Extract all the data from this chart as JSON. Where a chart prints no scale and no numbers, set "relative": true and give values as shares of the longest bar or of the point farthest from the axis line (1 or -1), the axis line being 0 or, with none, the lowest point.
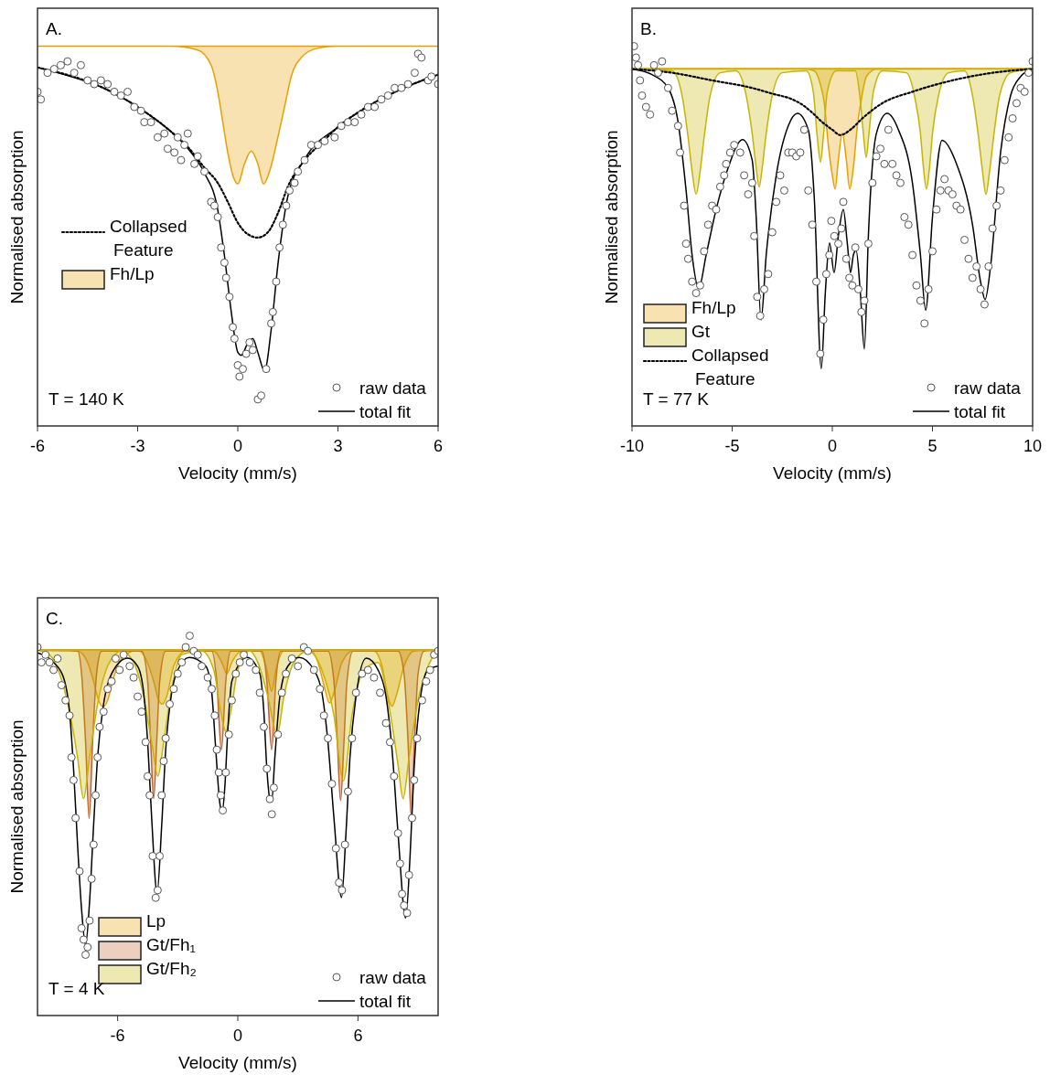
{
  "chart_data": [
    {
      "type": "line",
      "title": "A.",
      "xlabel": "Velocity (mm/s)",
      "ylabel": "Normalised absorption",
      "relative": true,
      "xlim": [
        -6,
        6
      ],
      "xticks": [
        -6,
        -3,
        0,
        3,
        6
      ],
      "legend": "left",
      "annotations": [
        "T = 140 K"
      ],
      "series": [
        {
          "name": "raw data",
          "type": "scatter",
          "marker": "circle",
          "color": "#555555",
          "x": [
            -6,
            -5.9,
            -5.7,
            -5.5,
            -5.3,
            -5.1,
            -4.9,
            -4.7,
            -4.5,
            -4.3,
            -4.1,
            -3.9,
            -3.7,
            -3.5,
            -3.3,
            -3.1,
            -2.9,
            -2.8,
            -2.6,
            -2.4,
            -2.2,
            -2.1,
            -1.9,
            -1.8,
            -1.7,
            -1.6,
            -1.5,
            -1.3,
            -1.2,
            -1.0,
            -0.8,
            -0.7,
            -0.6,
            -0.5,
            -0.4,
            -0.35,
            -0.25,
            -0.15,
            -0.1,
            0,
            0.05,
            0.15,
            0.25,
            0.35,
            0.45,
            0.6,
            0.7,
            0.85,
            1.0,
            1.05,
            1.15,
            1.25,
            1.35,
            1.45,
            1.55,
            1.7,
            1.8,
            2.0,
            2.2,
            2.4,
            2.6,
            2.9,
            3.1,
            3.3,
            3.5,
            3.7,
            3.9,
            4.1,
            4.3,
            4.5,
            4.7,
            4.9,
            5.1,
            5.3,
            5.4,
            5.5,
            5.7,
            5.8,
            6.0
          ],
          "values": [
            0.88,
            0.86,
            0.93,
            0.94,
            0.95,
            0.96,
            0.93,
            0.95,
            0.91,
            0.9,
            0.91,
            0.9,
            0.88,
            0.87,
            0.88,
            0.84,
            0.83,
            0.8,
            0.8,
            0.76,
            0.77,
            0.73,
            0.72,
            0.76,
            0.7,
            0.74,
            0.77,
            0.69,
            0.71,
            0.67,
            0.59,
            0.58,
            0.55,
            0.47,
            0.43,
            0.39,
            0.34,
            0.26,
            0.23,
            0.16,
            0.13,
            0.15,
            0.19,
            0.22,
            0.2,
            0.07,
            0.08,
            0.15,
            0.27,
            0.3,
            0.38,
            0.47,
            0.53,
            0.58,
            0.62,
            0.64,
            0.67,
            0.7,
            0.74,
            0.74,
            0.75,
            0.76,
            0.79,
            0.8,
            0.8,
            0.82,
            0.84,
            0.84,
            0.86,
            0.87,
            0.89,
            0.89,
            0.9,
            0.93,
            0.98,
            0.97,
            0.91,
            0.92,
            0.9
          ]
        },
        {
          "name": "total fit",
          "type": "line",
          "color": "#000000",
          "x": [
            -6,
            -5,
            -4,
            -3,
            -2,
            -1.5,
            -1,
            -0.6,
            -0.4,
            -0.2,
            0,
            0.1,
            0.3,
            0.45,
            0.6,
            0.8,
            1.0,
            1.2,
            1.5,
            2,
            3,
            4,
            5,
            6
          ],
          "values": [
            0.944,
            0.92,
            0.889,
            0.84,
            0.775,
            0.731,
            0.666,
            0.569,
            0.448,
            0.303,
            0.194,
            0.186,
            0.218,
            0.23,
            0.194,
            0.145,
            0.254,
            0.424,
            0.605,
            0.702,
            0.787,
            0.847,
            0.891,
            0.925
          ]
        },
        {
          "name": "Collapsed Feature",
          "type": "line",
          "line_style": "dotted",
          "color": "#000000",
          "x": [
            -6,
            -4,
            -3,
            -2,
            -1.5,
            -1,
            -0.6,
            -0.3,
            0,
            0.3,
            0.6,
            0.9,
            1.2,
            1.5,
            2,
            2.5,
            3,
            4,
            5,
            6
          ],
          "values": [
            0.944,
            0.889,
            0.84,
            0.775,
            0.735,
            0.68,
            0.64,
            0.59,
            0.535,
            0.505,
            0.496,
            0.51,
            0.56,
            0.63,
            0.7,
            0.745,
            0.787,
            0.847,
            0.891,
            0.925
          ]
        },
        {
          "name": "Fh/Lp",
          "type": "area",
          "color": "#e8a000",
          "x": [
            -6,
            -2,
            -1.2,
            -0.8,
            -0.6,
            -0.45,
            -0.3,
            -0.15,
            0,
            0.2,
            0.4,
            0.6,
            0.77,
            0.95,
            1.2,
            1.4,
            1.6,
            1.9,
            2.4,
            3,
            6
          ],
          "values": [
            1,
            1,
            0.99,
            0.95,
            0.88,
            0.8,
            0.72,
            0.66,
            0.637,
            0.69,
            0.724,
            0.69,
            0.637,
            0.67,
            0.76,
            0.84,
            0.92,
            0.97,
            0.995,
            1,
            1
          ]
        }
      ]
    },
    {
      "type": "line",
      "title": "B.",
      "xlabel": "Velocity (mm/s)",
      "ylabel": "Normalised absorption",
      "relative": true,
      "xlim": [
        -10,
        10
      ],
      "xticks": [
        -10,
        -5,
        0,
        5,
        10
      ],
      "legend": "bottom left",
      "annotations": [
        "T = 77 K"
      ],
      "series": [
        {
          "name": "raw data",
          "type": "scatter",
          "marker": "circle",
          "color": "#555555",
          "x": [
            -9.9,
            -9.8,
            -9.7,
            -9.6,
            -9.5,
            -9.3,
            -9.1,
            -8.9,
            -8.7,
            -8.5,
            -8.2,
            -8.0,
            -7.7,
            -7.6,
            -7.4,
            -7.3,
            -7.2,
            -7.0,
            -6.8,
            -6.6,
            -6.4,
            -6.2,
            -6.0,
            -5.8,
            -5.6,
            -5.4,
            -5.3,
            -5.1,
            -4.9,
            -4.6,
            -4.4,
            -4.2,
            -4.0,
            -3.9,
            -3.75,
            -3.6,
            -3.4,
            -3.2,
            -3.0,
            -2.8,
            -2.6,
            -2.4,
            -2.2,
            -2.0,
            -1.8,
            -1.6,
            -1.4,
            -1.2,
            -1.0,
            -0.8,
            -0.6,
            -0.45,
            -0.3,
            -0.15,
            -0.05,
            0.1,
            0.3,
            0.45,
            0.55,
            0.7,
            0.85,
            1.0,
            1.15,
            1.3,
            1.45,
            1.6,
            1.8,
            2.0,
            2.2,
            2.4,
            2.6,
            2.8,
            3.0,
            3.2,
            3.4,
            3.6,
            3.8,
            4.0,
            4.2,
            4.4,
            4.6,
            4.8,
            5.0,
            5.2,
            5.4,
            5.6,
            5.8,
            6.0,
            6.2,
            6.4,
            6.6,
            6.8,
            7.0,
            7.2,
            7.4,
            7.6,
            7.8,
            8.0,
            8.2,
            8.4,
            8.6,
            8.8,
            9.0,
            9.2,
            9.4,
            9.6,
            9.8,
            10.0
          ],
          "values": [
            1,
            0.97,
            0.95,
            0.91,
            0.87,
            0.84,
            0.82,
            0.95,
            0.93,
            0.96,
            0.89,
            0.83,
            0.79,
            0.72,
            0.58,
            0.48,
            0.44,
            0.38,
            0.35,
            0.37,
            0.46,
            0.53,
            0.58,
            0.57,
            0.63,
            0.66,
            0.69,
            0.72,
            0.74,
            0.72,
            0.66,
            0.61,
            0.64,
            0.5,
            0.34,
            0.29,
            0.36,
            0.4,
            0.51,
            0.59,
            0.66,
            0.62,
            0.72,
            0.72,
            0.71,
            0.72,
            0.78,
            0.62,
            0.53,
            0.38,
            0.19,
            0.28,
            0.4,
            0.45,
            0.54,
            0.5,
            0.48,
            0.52,
            0.59,
            0.44,
            0.39,
            0.37,
            0.47,
            0.36,
            0.3,
            0.33,
            0.48,
            0.64,
            0.71,
            0.73,
            0.69,
            0.78,
            0.69,
            0.66,
            0.64,
            0.55,
            0.53,
            0.45,
            0.37,
            0.33,
            0.27,
            0.36,
            0.46,
            0.57,
            0.62,
            0.65,
            0.62,
            0.61,
            0.58,
            0.57,
            0.49,
            0.44,
            0.39,
            0.42,
            0.36,
            0.32,
            0.42,
            0.52,
            0.58,
            0.62,
            0.7,
            0.76,
            0.81,
            0.85,
            0.89,
            0.88,
            0.93,
            0.96
          ]
        },
        {
          "name": "total fit",
          "type": "line",
          "color": "#000000",
          "x": [
            -10,
            -9,
            -8.2,
            -7.7,
            -7.3,
            -7.0,
            -6.67,
            -6.3,
            -5.8,
            -5.2,
            -4.48,
            -4.0,
            -3.8,
            -3.56,
            -3.3,
            -2.8,
            -2.2,
            -1.74,
            -1.2,
            -0.9,
            -0.55,
            -0.35,
            -0.14,
            0.09,
            0.3,
            0.55,
            0.75,
            0.91,
            1.05,
            1.19,
            1.4,
            1.6,
            1.8,
            2.2,
            2.74,
            3.3,
            4.0,
            4.4,
            4.66,
            5.0,
            5.48,
            6.2,
            7.0,
            7.4,
            7.63,
            7.9,
            8.4,
            8.9,
            9.4,
            10
          ],
          "values": [
            0.94,
            0.925,
            0.89,
            0.8,
            0.62,
            0.45,
            0.362,
            0.45,
            0.57,
            0.68,
            0.754,
            0.7,
            0.55,
            0.279,
            0.45,
            0.66,
            0.79,
            0.823,
            0.78,
            0.6,
            0.151,
            0.35,
            0.482,
            0.404,
            0.5,
            0.57,
            0.48,
            0.404,
            0.45,
            0.463,
            0.35,
            0.203,
            0.5,
            0.77,
            0.823,
            0.78,
            0.64,
            0.45,
            0.305,
            0.55,
            0.752,
            0.69,
            0.53,
            0.38,
            0.333,
            0.42,
            0.72,
            0.87,
            0.92,
            0.94
          ]
        },
        {
          "name": "Fh/Lp",
          "type": "area",
          "color": "#e8a000",
          "x": [
            -10,
            -1.5,
            -0.9,
            -0.6,
            -0.4,
            -0.2,
            0,
            0.14,
            0.3,
            0.5,
            0.7,
            0.87,
            1.05,
            1.25,
            1.45,
            1.7,
            2.2,
            10
          ],
          "values": [
            0.941,
            0.941,
            0.935,
            0.9,
            0.85,
            0.74,
            0.66,
            0.624,
            0.7,
            0.771,
            0.7,
            0.624,
            0.68,
            0.79,
            0.86,
            0.92,
            0.94,
            0.941
          ]
        },
        {
          "name": "Gt",
          "type": "area",
          "color": "#c8b400",
          "x": [
            -10,
            -8.0,
            -7.5,
            -7.2,
            -7.0,
            -6.8,
            -6.6,
            -6.4,
            -6.1,
            -5.6,
            -4.8,
            -4.3,
            -4.0,
            -3.8,
            -3.65,
            -3.5,
            -3.3,
            -3.0,
            -2.5,
            -1.3,
            -0.95,
            -0.75,
            -0.59,
            -0.45,
            -0.25,
            0.2,
            1.15,
            1.35,
            1.55,
            1.69,
            1.83,
            2.05,
            2.5,
            3.7,
            4.1,
            4.4,
            4.55,
            4.7,
            4.85,
            5.0,
            5.3,
            5.8,
            6.6,
            7.0,
            7.3,
            7.5,
            7.67,
            7.85,
            8.05,
            8.35,
            8.9,
            10
          ],
          "values": [
            0.94,
            0.935,
            0.87,
            0.76,
            0.67,
            0.61,
            0.67,
            0.76,
            0.87,
            0.93,
            0.935,
            0.87,
            0.77,
            0.68,
            0.629,
            0.68,
            0.77,
            0.87,
            0.93,
            0.935,
            0.88,
            0.76,
            0.695,
            0.76,
            0.88,
            0.935,
            0.935,
            0.88,
            0.77,
            0.707,
            0.77,
            0.88,
            0.935,
            0.93,
            0.87,
            0.77,
            0.68,
            0.624,
            0.68,
            0.77,
            0.87,
            0.93,
            0.935,
            0.87,
            0.76,
            0.67,
            0.61,
            0.67,
            0.76,
            0.87,
            0.93,
            0.94
          ]
        },
        {
          "name": "Collapsed Feature",
          "type": "line",
          "line_style": "dotted",
          "color": "#000000",
          "x": [
            -10,
            -8,
            -6,
            -4,
            -3,
            -2,
            -1.5,
            -1,
            -0.5,
            0,
            0.4,
            0.9,
            1.5,
            2.5,
            4,
            6,
            8,
            10
          ],
          "values": [
            0.94,
            0.93,
            0.91,
            0.89,
            0.875,
            0.86,
            0.846,
            0.825,
            0.8,
            0.78,
            0.766,
            0.78,
            0.81,
            0.85,
            0.88,
            0.91,
            0.93,
            0.94
          ]
        }
      ]
    },
    {
      "type": "line",
      "title": "C.",
      "xlabel": "Velocity (mm/s)",
      "ylabel": "Normalised absorption",
      "relative": true,
      "xlim": [
        -10,
        10
      ],
      "xticks": [
        -6,
        0,
        6
      ],
      "legend": "bottom",
      "annotations": [
        "T = 4 K"
      ],
      "series": [
        {
          "name": "raw data",
          "type": "scatter",
          "marker": "circle",
          "color": "#555555",
          "x": [
            -10,
            -9.8,
            -9.6,
            -9.4,
            -9.2,
            -9.0,
            -8.8,
            -8.6,
            -8.4,
            -8.3,
            -8.2,
            -8.1,
            -7.9,
            -7.8,
            -7.7,
            -7.6,
            -7.5,
            -7.4,
            -7.3,
            -7.2,
            -7.1,
            -7.0,
            -6.9,
            -6.7,
            -6.5,
            -6.3,
            -6.1,
            -5.9,
            -5.7,
            -5.4,
            -5.2,
            -5.0,
            -4.8,
            -4.6,
            -4.5,
            -4.4,
            -4.25,
            -4.1,
            -4.0,
            -3.9,
            -3.8,
            -3.7,
            -3.6,
            -3.4,
            -3.2,
            -3.0,
            -2.8,
            -2.6,
            -2.4,
            -2.2,
            -2.0,
            -1.8,
            -1.5,
            -1.3,
            -1.15,
            -1.05,
            -0.95,
            -0.85,
            -0.75,
            -0.6,
            -0.45,
            -0.3,
            -0.1,
            0.1,
            0.3,
            0.6,
            0.9,
            1.1,
            1.3,
            1.45,
            1.6,
            1.7,
            1.8,
            2.0,
            2.2,
            2.4,
            2.7,
            3.0,
            3.3,
            3.5,
            3.8,
            4.1,
            4.3,
            4.5,
            4.7,
            4.9,
            5.05,
            5.2,
            5.35,
            5.5,
            5.7,
            5.9,
            6.2,
            6.5,
            6.8,
            7.1,
            7.4,
            7.6,
            7.8,
            8.0,
            8.1,
            8.2,
            8.3,
            8.45,
            8.55,
            8.7,
            8.8,
            8.95,
            9.2,
            9.4,
            9.6,
            9.8,
            10
          ],
          "values": [
            0.97,
            0.93,
            0.95,
            0.93,
            0.91,
            0.94,
            0.87,
            0.83,
            0.79,
            0.68,
            0.62,
            0.52,
            0.38,
            0.23,
            0.2,
            0.16,
            0.18,
            0.25,
            0.36,
            0.45,
            0.58,
            0.68,
            0.76,
            0.8,
            0.86,
            0.88,
            0.94,
            0.91,
            0.95,
            0.92,
            0.89,
            0.84,
            0.8,
            0.72,
            0.63,
            0.58,
            0.42,
            0.31,
            0.33,
            0.42,
            0.58,
            0.67,
            0.73,
            0.82,
            0.86,
            0.9,
            0.93,
            0.97,
            1,
            0.96,
            0.95,
            0.92,
            0.89,
            0.86,
            0.79,
            0.7,
            0.64,
            0.58,
            0.54,
            0.64,
            0.74,
            0.83,
            0.9,
            0.93,
            0.95,
            0.93,
            0.91,
            0.85,
            0.76,
            0.65,
            0.57,
            0.53,
            0.6,
            0.74,
            0.85,
            0.9,
            0.94,
            0.92,
            0.97,
            0.96,
            0.91,
            0.86,
            0.79,
            0.73,
            0.61,
            0.44,
            0.35,
            0.33,
            0.45,
            0.59,
            0.73,
            0.85,
            0.9,
            0.91,
            0.89,
            0.85,
            0.77,
            0.72,
            0.63,
            0.48,
            0.4,
            0.32,
            0.29,
            0.27,
            0.37,
            0.52,
            0.62,
            0.73,
            0.83,
            0.88,
            0.91,
            0.95,
            0.96
          ]
        },
        {
          "name": "total fit",
          "type": "line",
          "color": "#000000",
          "x": [
            -10,
            -9.2,
            -8.7,
            -8.4,
            -8.2,
            -8.0,
            -7.8,
            -7.6,
            -7.4,
            -7.2,
            -7.0,
            -6.7,
            -6.3,
            -5.5,
            -5.0,
            -4.7,
            -4.5,
            -4.3,
            -4.03,
            -3.8,
            -3.6,
            -3.3,
            -3.0,
            -2.43,
            -1.6,
            -1.3,
            -1.1,
            -0.9,
            -0.78,
            -0.65,
            -0.5,
            -0.3,
            0.46,
            1.1,
            1.3,
            1.45,
            1.6,
            1.69,
            1.85,
            2.1,
            2.5,
            3.07,
            3.8,
            4.2,
            4.5,
            4.8,
            5.18,
            5.4,
            5.6,
            5.9,
            6.41,
            7.0,
            7.4,
            7.7,
            8.0,
            8.38,
            8.6,
            8.8,
            9.1,
            9.5,
            10
          ],
          "values": [
            0.955,
            0.93,
            0.89,
            0.8,
            0.65,
            0.45,
            0.28,
            0.186,
            0.3,
            0.5,
            0.68,
            0.82,
            0.9,
            0.941,
            0.92,
            0.85,
            0.72,
            0.52,
            0.323,
            0.5,
            0.7,
            0.85,
            0.91,
            0.943,
            0.92,
            0.85,
            0.7,
            0.56,
            0.535,
            0.6,
            0.75,
            0.88,
            0.943,
            0.9,
            0.8,
            0.65,
            0.57,
            0.564,
            0.68,
            0.84,
            0.92,
            0.943,
            0.91,
            0.85,
            0.72,
            0.52,
            0.311,
            0.48,
            0.68,
            0.84,
            0.941,
            0.91,
            0.84,
            0.7,
            0.48,
            0.257,
            0.42,
            0.65,
            0.83,
            0.91,
            0.92
          ]
        },
        {
          "name": "Lp",
          "type": "area",
          "color": "#e8a000",
          "x": [
            -10,
            -8.0,
            -7.5,
            -7.2,
            -6.95,
            -6.73,
            -6.5,
            -6.2,
            -5.8,
            -5.0,
            -4.6,
            -4.2,
            -3.95,
            -3.76,
            -3.55,
            -3.2,
            -2.6,
            -1.2,
            -0.8,
            -0.55,
            -0.3,
            0.2,
            1.1,
            1.4,
            1.69,
            1.9,
            2.3,
            3.6,
            4.0,
            4.3,
            4.58,
            4.85,
            5.2,
            5.8,
            6.8,
            7.2,
            7.5,
            7.7,
            7.9,
            8.3,
            8.8,
            10
          ],
          "values": [
            0.962,
            0.96,
            0.93,
            0.88,
            0.83,
            0.814,
            0.83,
            0.89,
            0.94,
            0.962,
            0.94,
            0.88,
            0.83,
            0.82,
            0.84,
            0.92,
            0.96,
            0.96,
            0.93,
            0.9,
            0.93,
            0.96,
            0.96,
            0.92,
            0.854,
            0.91,
            0.96,
            0.962,
            0.93,
            0.87,
            0.823,
            0.86,
            0.93,
            0.962,
            0.96,
            0.92,
            0.84,
            0.814,
            0.84,
            0.92,
            0.96,
            0.962
          ]
        },
        {
          "name": "Gt/Fh₁",
          "type": "area",
          "color": "#c0602a",
          "x": [
            -10,
            -8.0,
            -7.8,
            -7.6,
            -7.42,
            -7.25,
            -7.05,
            -6.8,
            -4.8,
            -4.5,
            -4.35,
            -4.2,
            -4.05,
            -3.9,
            -3.6,
            -1.3,
            -1.05,
            -0.82,
            -0.6,
            -0.35,
            1.2,
            1.45,
            1.69,
            1.9,
            2.15,
            4.5,
            4.8,
            4.97,
            5.13,
            5.3,
            5.45,
            5.75,
            8.0,
            8.3,
            8.5,
            8.66,
            8.82,
            9.0,
            9.3,
            10
          ],
          "values": [
            0.962,
            0.96,
            0.9,
            0.72,
            0.519,
            0.72,
            0.9,
            0.96,
            0.96,
            0.88,
            0.72,
            0.571,
            0.72,
            0.88,
            0.96,
            0.96,
            0.88,
            0.7,
            0.88,
            0.96,
            0.96,
            0.88,
            0.7,
            0.88,
            0.96,
            0.96,
            0.88,
            0.72,
            0.566,
            0.72,
            0.88,
            0.96,
            0.96,
            0.9,
            0.72,
            0.519,
            0.72,
            0.9,
            0.96,
            0.962
          ]
        },
        {
          "name": "Gt/Fh₂",
          "type": "area",
          "color": "#c8b400",
          "x": [
            -10,
            -9.4,
            -8.9,
            -8.4,
            -8.0,
            -7.7,
            -7.4,
            -7.0,
            -6.5,
            -5.8,
            -5.2,
            -4.7,
            -4.3,
            -3.99,
            -3.7,
            -3.3,
            -2.8,
            -1.8,
            -1.2,
            -0.85,
            -0.6,
            -0.35,
            0,
            0.6,
            1.0,
            1.5,
            1.97,
            2.3,
            2.8,
            3.5,
            4.2,
            4.8,
            5.27,
            5.7,
            6.3,
            7.0,
            7.6,
            8.0,
            8.25,
            8.55,
            9.0,
            9.5,
            10
          ],
          "values": [
            0.962,
            0.95,
            0.9,
            0.8,
            0.68,
            0.571,
            0.68,
            0.82,
            0.92,
            0.96,
            0.93,
            0.84,
            0.72,
            0.63,
            0.72,
            0.86,
            0.95,
            0.96,
            0.91,
            0.8,
            0.748,
            0.8,
            0.91,
            0.96,
            0.93,
            0.84,
            0.74,
            0.84,
            0.93,
            0.96,
            0.91,
            0.79,
            0.618,
            0.79,
            0.91,
            0.93,
            0.8,
            0.66,
            0.571,
            0.68,
            0.83,
            0.92,
            0.962
          ]
        }
      ]
    }
  ]
}
